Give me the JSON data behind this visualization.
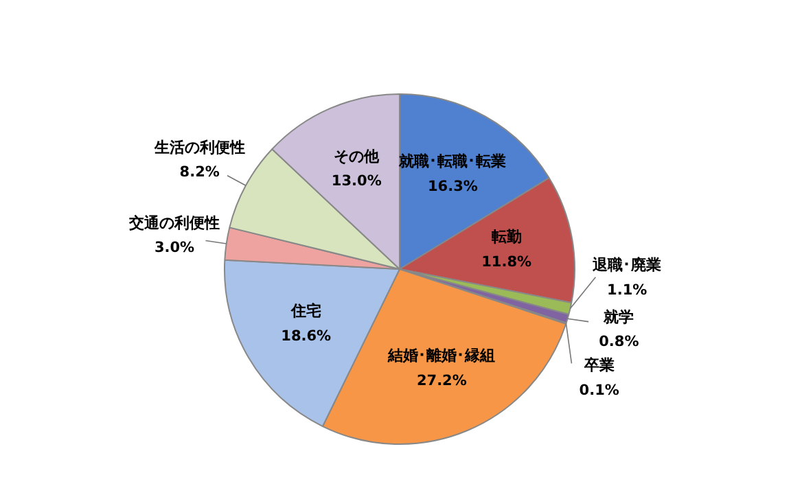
{
  "chart_data": {
    "type": "pie",
    "categories": [
      "就職･転職･転業",
      "転勤",
      "退職･廃業",
      "就学",
      "卒業",
      "結婚･離婚･縁組",
      "住宅",
      "交通の利便性",
      "生活の利便性",
      "その他"
    ],
    "values": [
      16.3,
      11.8,
      1.1,
      0.8,
      0.1,
      27.2,
      18.6,
      3.0,
      8.2,
      13.0
    ],
    "value_labels": [
      "16.3%",
      "11.8%",
      "1.1%",
      "0.8%",
      "0.1%",
      "27.2%",
      "18.6%",
      "3.0%",
      "8.2%",
      "13.0%"
    ],
    "colors": [
      "#4f81d0",
      "#c0504d",
      "#9bbb59",
      "#8064a2",
      "#4bacc6",
      "#f79646",
      "#a9c2ea",
      "#eea3a1",
      "#d7e4bd",
      "#ccc0da"
    ],
    "legend": false
  }
}
